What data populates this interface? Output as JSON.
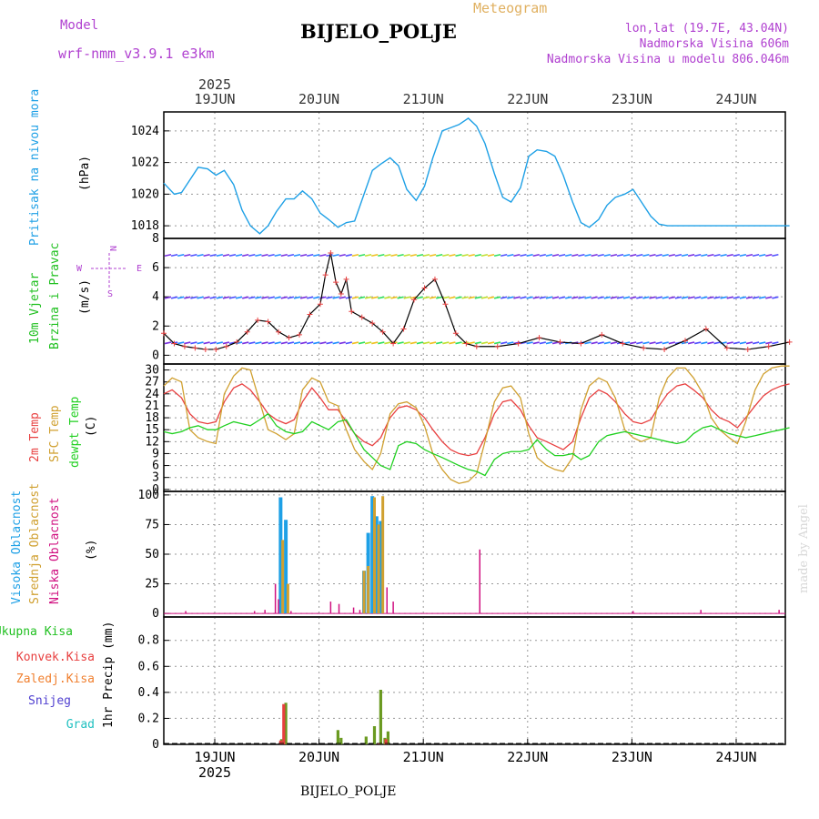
{
  "header": {
    "model_label": "Model",
    "model_name": "wrf-nmm_v3.9.1 e3km",
    "meteogram": "Meteogram",
    "station": "BIJELO_POLJE",
    "lonlat": "lon,lat (19.7E, 43.04N)",
    "altitude": "Nadmorska Visina 606m",
    "model_altitude": "Nadmorska Visina u modelu 806.046m",
    "made_by": "made by Angel",
    "footer_station": "BIJELO_POLJE"
  },
  "colors": {
    "pressure": "#1ea0e6",
    "wind_speed": "#000000",
    "wind_gust_marker": "#e84040",
    "t2m": "#e84040",
    "sfc": "#d0a030",
    "dewpt": "#20d020",
    "cloud_high": "#1ea0e6",
    "cloud_mid": "#d0a030",
    "cloud_low": "#d01080",
    "precip_total": "#20c020",
    "precip_conv": "#e84040",
    "precip_frozen": "#f08030",
    "precip_snow": "#5040d0",
    "precip_grad": "#20c0c0"
  },
  "chart_data": [
    {
      "type": "line",
      "name": "pressure",
      "title": "Pritisak na nivou mora",
      "ylabel": "(hPa)",
      "ylim": [
        1017.2,
        1025.2
      ],
      "yticks": [
        1018,
        1020,
        1022,
        1024
      ],
      "xlim_days": [
        0,
        6
      ],
      "top_axis_year": "2025",
      "top_axis_labels": [
        "19JUN",
        "20JUN",
        "21JUN",
        "22JUN",
        "23JUN",
        "24JUN"
      ],
      "bottom_axis_labels": [
        "19JUN",
        "20JUN",
        "21JUN",
        "22JUN",
        "23JUN",
        "24JUN"
      ],
      "bottom_axis_year": "2025",
      "x": [
        0,
        0.1,
        0.17,
        0.25,
        0.33,
        0.42,
        0.5,
        0.58,
        0.67,
        0.75,
        0.83,
        0.92,
        1.0,
        1.08,
        1.17,
        1.25,
        1.33,
        1.42,
        1.5,
        1.58,
        1.67,
        1.75,
        1.83,
        1.92,
        2.0,
        2.08,
        2.17,
        2.25,
        2.33,
        2.42,
        2.5,
        2.58,
        2.67,
        2.75,
        2.83,
        2.92,
        3.0,
        3.08,
        3.17,
        3.25,
        3.33,
        3.42,
        3.5,
        3.58,
        3.67,
        3.75,
        3.83,
        3.92,
        4.0,
        4.08,
        4.17,
        4.25,
        4.33,
        4.42,
        4.5,
        4.58,
        4.67,
        4.75,
        4.83,
        4.92,
        5.0,
        5.08,
        5.17,
        5.25,
        5.33,
        5.42,
        5.5,
        5.58,
        5.67,
        5.75,
        5.83,
        5.92,
        6.0
      ],
      "values": [
        1020.7,
        1020.0,
        1020.1,
        1020.9,
        1021.7,
        1021.6,
        1021.2,
        1021.5,
        1020.6,
        1019.0,
        1018.0,
        1017.5,
        1018.0,
        1018.9,
        1019.7,
        1019.7,
        1020.2,
        1019.7,
        1018.8,
        1018.4,
        1017.9,
        1018.2,
        1018.3,
        1020.0,
        1021.5,
        1021.9,
        1022.3,
        1021.8,
        1020.3,
        1019.6,
        1020.5,
        1022.3,
        1024.0,
        1024.2,
        1024.4,
        1024.8,
        1024.3,
        1023.2,
        1021.3,
        1019.8,
        1019.5,
        1020.4,
        1022.4,
        1022.8,
        1022.7,
        1022.4,
        1021.2,
        1019.5,
        1018.2,
        1017.9,
        1018.4,
        1019.3,
        1019.8,
        1020.0,
        1020.3,
        1019.5,
        1018.6,
        1018.1,
        1018.0,
        1018.0,
        1018.0,
        1018.0,
        1018.0,
        1018.0,
        1018.0,
        1018.0,
        1018.0,
        1018.0,
        1018.0,
        1018.0,
        1018.0,
        1018.0,
        1018.0
      ]
    },
    {
      "type": "line",
      "name": "wind",
      "title": "10m Vjetar Brzina i Pravac",
      "title_lines": [
        "10m Vjetar",
        "Brzina i Pravac"
      ],
      "ylabel": "(m/s)",
      "compass": {
        "n": "N",
        "s": "S",
        "e": "E",
        "w": "W"
      },
      "ylim": [
        -0.6,
        8
      ],
      "yticks": [
        0,
        2,
        4,
        6,
        8
      ],
      "barb_levels": [
        0.8,
        3.9,
        6.8
      ],
      "x": [
        0,
        0.1,
        0.2,
        0.3,
        0.4,
        0.5,
        0.6,
        0.7,
        0.8,
        0.9,
        1.0,
        1.1,
        1.2,
        1.3,
        1.4,
        1.5,
        1.55,
        1.6,
        1.65,
        1.7,
        1.75,
        1.8,
        1.9,
        2.0,
        2.1,
        2.2,
        2.3,
        2.4,
        2.5,
        2.6,
        2.7,
        2.8,
        2.9,
        3.0,
        3.2,
        3.4,
        3.6,
        3.8,
        4.0,
        4.2,
        4.4,
        4.6,
        4.8,
        5.0,
        5.2,
        5.4,
        5.6,
        5.8,
        6.0
      ],
      "values": [
        1.5,
        0.8,
        0.6,
        0.5,
        0.4,
        0.4,
        0.6,
        0.9,
        1.6,
        2.4,
        2.3,
        1.6,
        1.2,
        1.4,
        2.8,
        3.5,
        5.5,
        7.0,
        5.0,
        4.2,
        5.2,
        3.0,
        2.6,
        2.2,
        1.6,
        0.8,
        1.8,
        3.8,
        4.6,
        5.2,
        3.5,
        1.5,
        0.8,
        0.6,
        0.6,
        0.8,
        1.2,
        0.9,
        0.8,
        1.4,
        0.8,
        0.5,
        0.4,
        1.0,
        1.8,
        0.5,
        0.4,
        0.6,
        0.9
      ]
    },
    {
      "type": "line",
      "name": "temperature",
      "ylabel": "(C)",
      "title_lines": [
        "2m Temp",
        "SFC Temp",
        "dewpt Temp"
      ],
      "ylim": [
        -0.5,
        31.5
      ],
      "yticks": [
        0,
        3,
        6,
        9,
        12,
        15,
        18,
        21,
        24,
        27,
        30
      ],
      "x": [
        0,
        0.08,
        0.17,
        0.25,
        0.33,
        0.42,
        0.5,
        0.58,
        0.67,
        0.75,
        0.83,
        0.92,
        1.0,
        1.08,
        1.17,
        1.25,
        1.33,
        1.42,
        1.5,
        1.58,
        1.67,
        1.75,
        1.83,
        1.92,
        2.0,
        2.08,
        2.17,
        2.25,
        2.33,
        2.42,
        2.5,
        2.58,
        2.67,
        2.75,
        2.83,
        2.92,
        3.0,
        3.08,
        3.17,
        3.25,
        3.33,
        3.42,
        3.5,
        3.58,
        3.67,
        3.75,
        3.83,
        3.92,
        4.0,
        4.08,
        4.17,
        4.25,
        4.33,
        4.42,
        4.5,
        4.58,
        4.67,
        4.75,
        4.83,
        4.92,
        5.0,
        5.08,
        5.17,
        5.25,
        5.33,
        5.42,
        5.5,
        5.58,
        5.67,
        5.75,
        5.83,
        5.92,
        6.0
      ],
      "series": [
        {
          "name": "2m Temp",
          "values": [
            24,
            25,
            23,
            19,
            17,
            16.5,
            17,
            22,
            25.5,
            26.5,
            25,
            22,
            19,
            17.5,
            16.5,
            17.5,
            22,
            25.5,
            23,
            20,
            20,
            17,
            14,
            12,
            11,
            13,
            18,
            20.5,
            21,
            20,
            18,
            15,
            12,
            10,
            9,
            8.5,
            9,
            13,
            19,
            22,
            22.5,
            20,
            16,
            13,
            12,
            11,
            10,
            12,
            18,
            23,
            25,
            24,
            22,
            19,
            17,
            16.5,
            17.5,
            21,
            24,
            26,
            26.5,
            25,
            23,
            20,
            18,
            17,
            15.5,
            18,
            21,
            23.5,
            25,
            26,
            26.5
          ]
        },
        {
          "name": "SFC Temp",
          "values": [
            26,
            28,
            27,
            15,
            13,
            12,
            11.5,
            24,
            28.5,
            30.5,
            30,
            22,
            15,
            14,
            12.5,
            14,
            25,
            28,
            27,
            22,
            21,
            15,
            10,
            7,
            5,
            9,
            19,
            21.5,
            22,
            20.5,
            16,
            9,
            5,
            2.5,
            1.5,
            2,
            4,
            12,
            22,
            25.5,
            26,
            23,
            14,
            8,
            6,
            5,
            4.5,
            8,
            20,
            26,
            28,
            27,
            23,
            15,
            13,
            12,
            13,
            23,
            28,
            30.5,
            30.5,
            28,
            24,
            18,
            15,
            13,
            11.5,
            17,
            25,
            29,
            30.5,
            31,
            31
          ]
        },
        {
          "name": "dewpt Temp",
          "values": [
            14.5,
            14,
            14.5,
            15.5,
            16,
            15,
            15,
            16,
            17,
            16.5,
            16,
            17.5,
            19,
            16,
            14.5,
            14,
            14.5,
            17,
            16,
            15,
            17,
            17.5,
            14,
            10,
            8,
            6,
            5,
            11,
            12,
            11.5,
            10,
            9,
            8,
            7,
            6,
            5,
            4.5,
            3.5,
            7.5,
            9,
            9.5,
            9.5,
            10,
            12.5,
            10,
            8.5,
            8.5,
            9,
            7.5,
            8.5,
            12,
            13.5,
            14,
            14.5,
            14,
            13.5,
            13,
            12.5,
            12,
            11.5,
            12,
            14,
            15.5,
            16,
            15,
            14,
            13.5,
            13,
            13.5,
            14,
            14.5,
            15,
            15.5
          ]
        }
      ]
    },
    {
      "type": "bar",
      "name": "clouds",
      "ylabel": "(%)",
      "title_lines": [
        "Visoka Oblacnost",
        "Srednja Oblacnost",
        "Niska Oblacnost"
      ],
      "ylim": [
        -3,
        103
      ],
      "yticks": [
        0,
        25,
        50,
        75,
        100
      ],
      "series": [
        {
          "name": "Visoka Oblacnost",
          "x": [
            1.12,
            1.17,
            1.92,
            1.96,
            2.0,
            2.04,
            2.08
          ],
          "values": [
            98,
            79,
            36,
            68,
            99,
            82,
            78
          ]
        },
        {
          "name": "Srednja Oblacnost",
          "x": [
            1.14,
            1.19,
            1.92,
            1.96,
            2.02,
            2.06,
            2.1
          ],
          "values": [
            62,
            25,
            36,
            40,
            98,
            75,
            99
          ]
        },
        {
          "name": "Niska Oblacnost",
          "x": [
            0.21,
            0.87,
            0.97,
            1.07,
            1.1,
            1.22,
            1.6,
            1.68,
            1.82,
            1.88,
            2.14,
            2.2,
            3.03,
            4.5,
            5.15,
            5.9
          ],
          "values": [
            2,
            2,
            3,
            25,
            12,
            2,
            10,
            8,
            5,
            3,
            22,
            10,
            54,
            2,
            3,
            3
          ]
        }
      ]
    },
    {
      "type": "bar",
      "name": "precipitation",
      "ylabel": "1hr Precip (mm)",
      "title_lines": [
        "Ukupna Kisa",
        "Konvek.Kisa",
        "Zaledj.Kisa",
        "Snijeg",
        "Grad"
      ],
      "ylim": [
        0,
        0.98
      ],
      "yticks": [
        0,
        0.2,
        0.4,
        0.6,
        0.8
      ],
      "ytick_labels": [
        "0",
        "0.2",
        "0.4",
        "0.6",
        "0.8"
      ],
      "series": [
        {
          "name": "Ukupna Kisa",
          "x": [
            1.13,
            1.17,
            1.67,
            1.7,
            1.94,
            2.02,
            2.08,
            2.12,
            2.15
          ],
          "values": [
            0.04,
            0.32,
            0.11,
            0.05,
            0.06,
            0.14,
            0.42,
            0.05,
            0.1
          ]
        },
        {
          "name": "Konvek.Kisa",
          "x": [
            1.12,
            1.15,
            2.06,
            2.13
          ],
          "values": [
            0.03,
            0.31,
            0.01,
            0.04
          ]
        }
      ]
    }
  ]
}
